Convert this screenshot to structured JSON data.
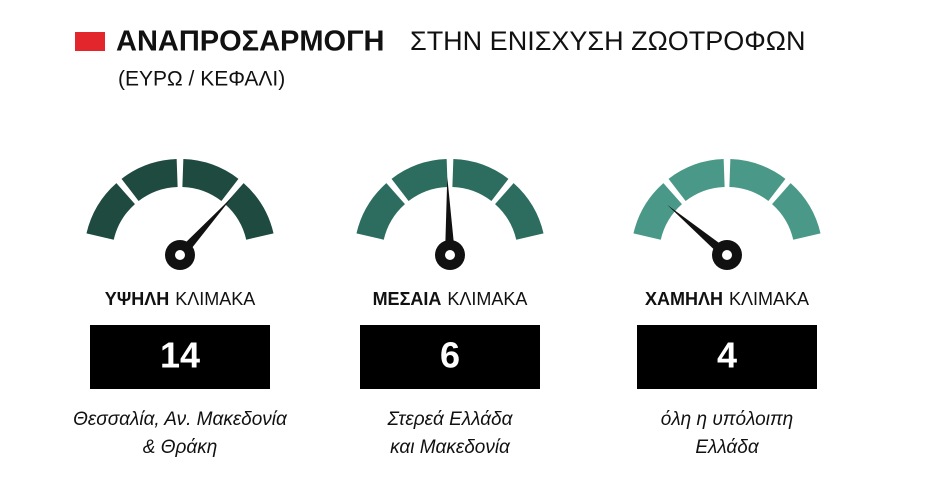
{
  "header": {
    "title_bold": "ΑΝΑΠΡΟΣΑΡΜΟΓΗ",
    "title_rest": "ΣΤΗΝ ΕΝΙΣΧΥΣΗ ΖΩΟΤΡΟΦΩΝ",
    "subtitle": "(ΕΥΡΩ / ΚΕΦΑΛΙ)"
  },
  "panels": [
    {
      "level_bold": "ΥΨΗΛΗ",
      "level_rest": "ΚΛΙΜΑΚΑ",
      "amount": 14,
      "regions": [
        "Θεσσαλία, Αν. Μακεδονία",
        "& Θράκη"
      ]
    },
    {
      "level_bold": "ΜΕΣΑΙΑ",
      "level_rest": "ΚΛΙΜΑΚΑ",
      "amount": 6,
      "regions": [
        "Στερεά Ελλάδα",
        "και Μακεδονία"
      ]
    },
    {
      "level_bold": "ΧΑΜΗΛΗ",
      "level_rest": "ΚΛΙΜΑΚΑ",
      "amount": 4,
      "regions": [
        "όλη η υπόλοιπη",
        "Ελλάδα"
      ]
    }
  ]
}
